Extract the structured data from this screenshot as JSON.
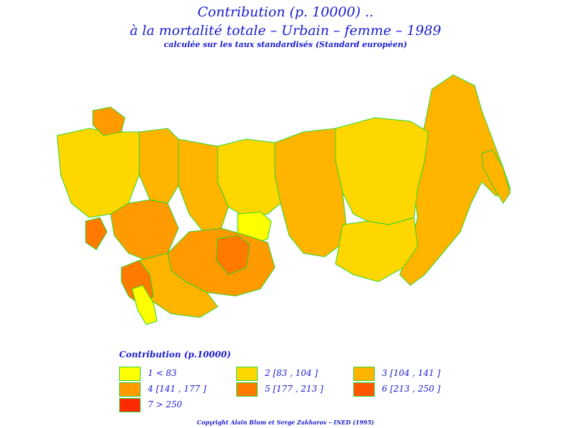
{
  "title": {
    "line1": "Contribution  (p. 10000) ..",
    "line2": "à  la  mortalité  totale  –  Urbain  –  femme  –  1989",
    "line3": "calculée  sur  les  taux  standardisés  (Standard  européen)"
  },
  "legend": {
    "title": "Contribution  (p.10000)",
    "items": [
      {
        "label": "1  <  83",
        "color": "#ffff00"
      },
      {
        "label": "2  [83  ,  104  ]",
        "color": "#ffd700"
      },
      {
        "label": "3  [104  ,  141  ]",
        "color": "#ffb400"
      },
      {
        "label": "4  [141  ,  177  ]",
        "color": "#ff9a00"
      },
      {
        "label": "5  [177  ,  213  ]",
        "color": "#ff7a00"
      },
      {
        "label": "6  [213  ,  250  ]",
        "color": "#ff5500"
      },
      {
        "label": "7  >  250",
        "color": "#ff2a00"
      }
    ]
  },
  "map": {
    "border_color": "#2ad62a",
    "regions": [
      {
        "name": "eastern-siberia-far-east",
        "class": 3
      },
      {
        "name": "yakutia",
        "class": 2
      },
      {
        "name": "krasnoyarsk",
        "class": 3
      },
      {
        "name": "western-siberia-north",
        "class": 2
      },
      {
        "name": "central-siberia-south",
        "class": 2
      },
      {
        "name": "omsk-tomsk-area",
        "class": 1
      },
      {
        "name": "urals-north",
        "class": 3
      },
      {
        "name": "european-north",
        "class": 3
      },
      {
        "name": "baltic-and-west",
        "class": 2
      },
      {
        "name": "kola",
        "class": 4
      },
      {
        "name": "volga",
        "class": 4
      },
      {
        "name": "kazakhstan",
        "class": 4
      },
      {
        "name": "central-asia-south",
        "class": 3
      },
      {
        "name": "kazakhstan-east",
        "class": 5
      },
      {
        "name": "turkmenistan",
        "class": 5
      },
      {
        "name": "uzbekistan",
        "class": 1
      },
      {
        "name": "caucasus",
        "class": 5
      },
      {
        "name": "kamchatka",
        "class": 3
      }
    ]
  },
  "copyright": "Copyright  Alain  Blum  et  Serge  Zakharov  –  INED  (1995)"
}
